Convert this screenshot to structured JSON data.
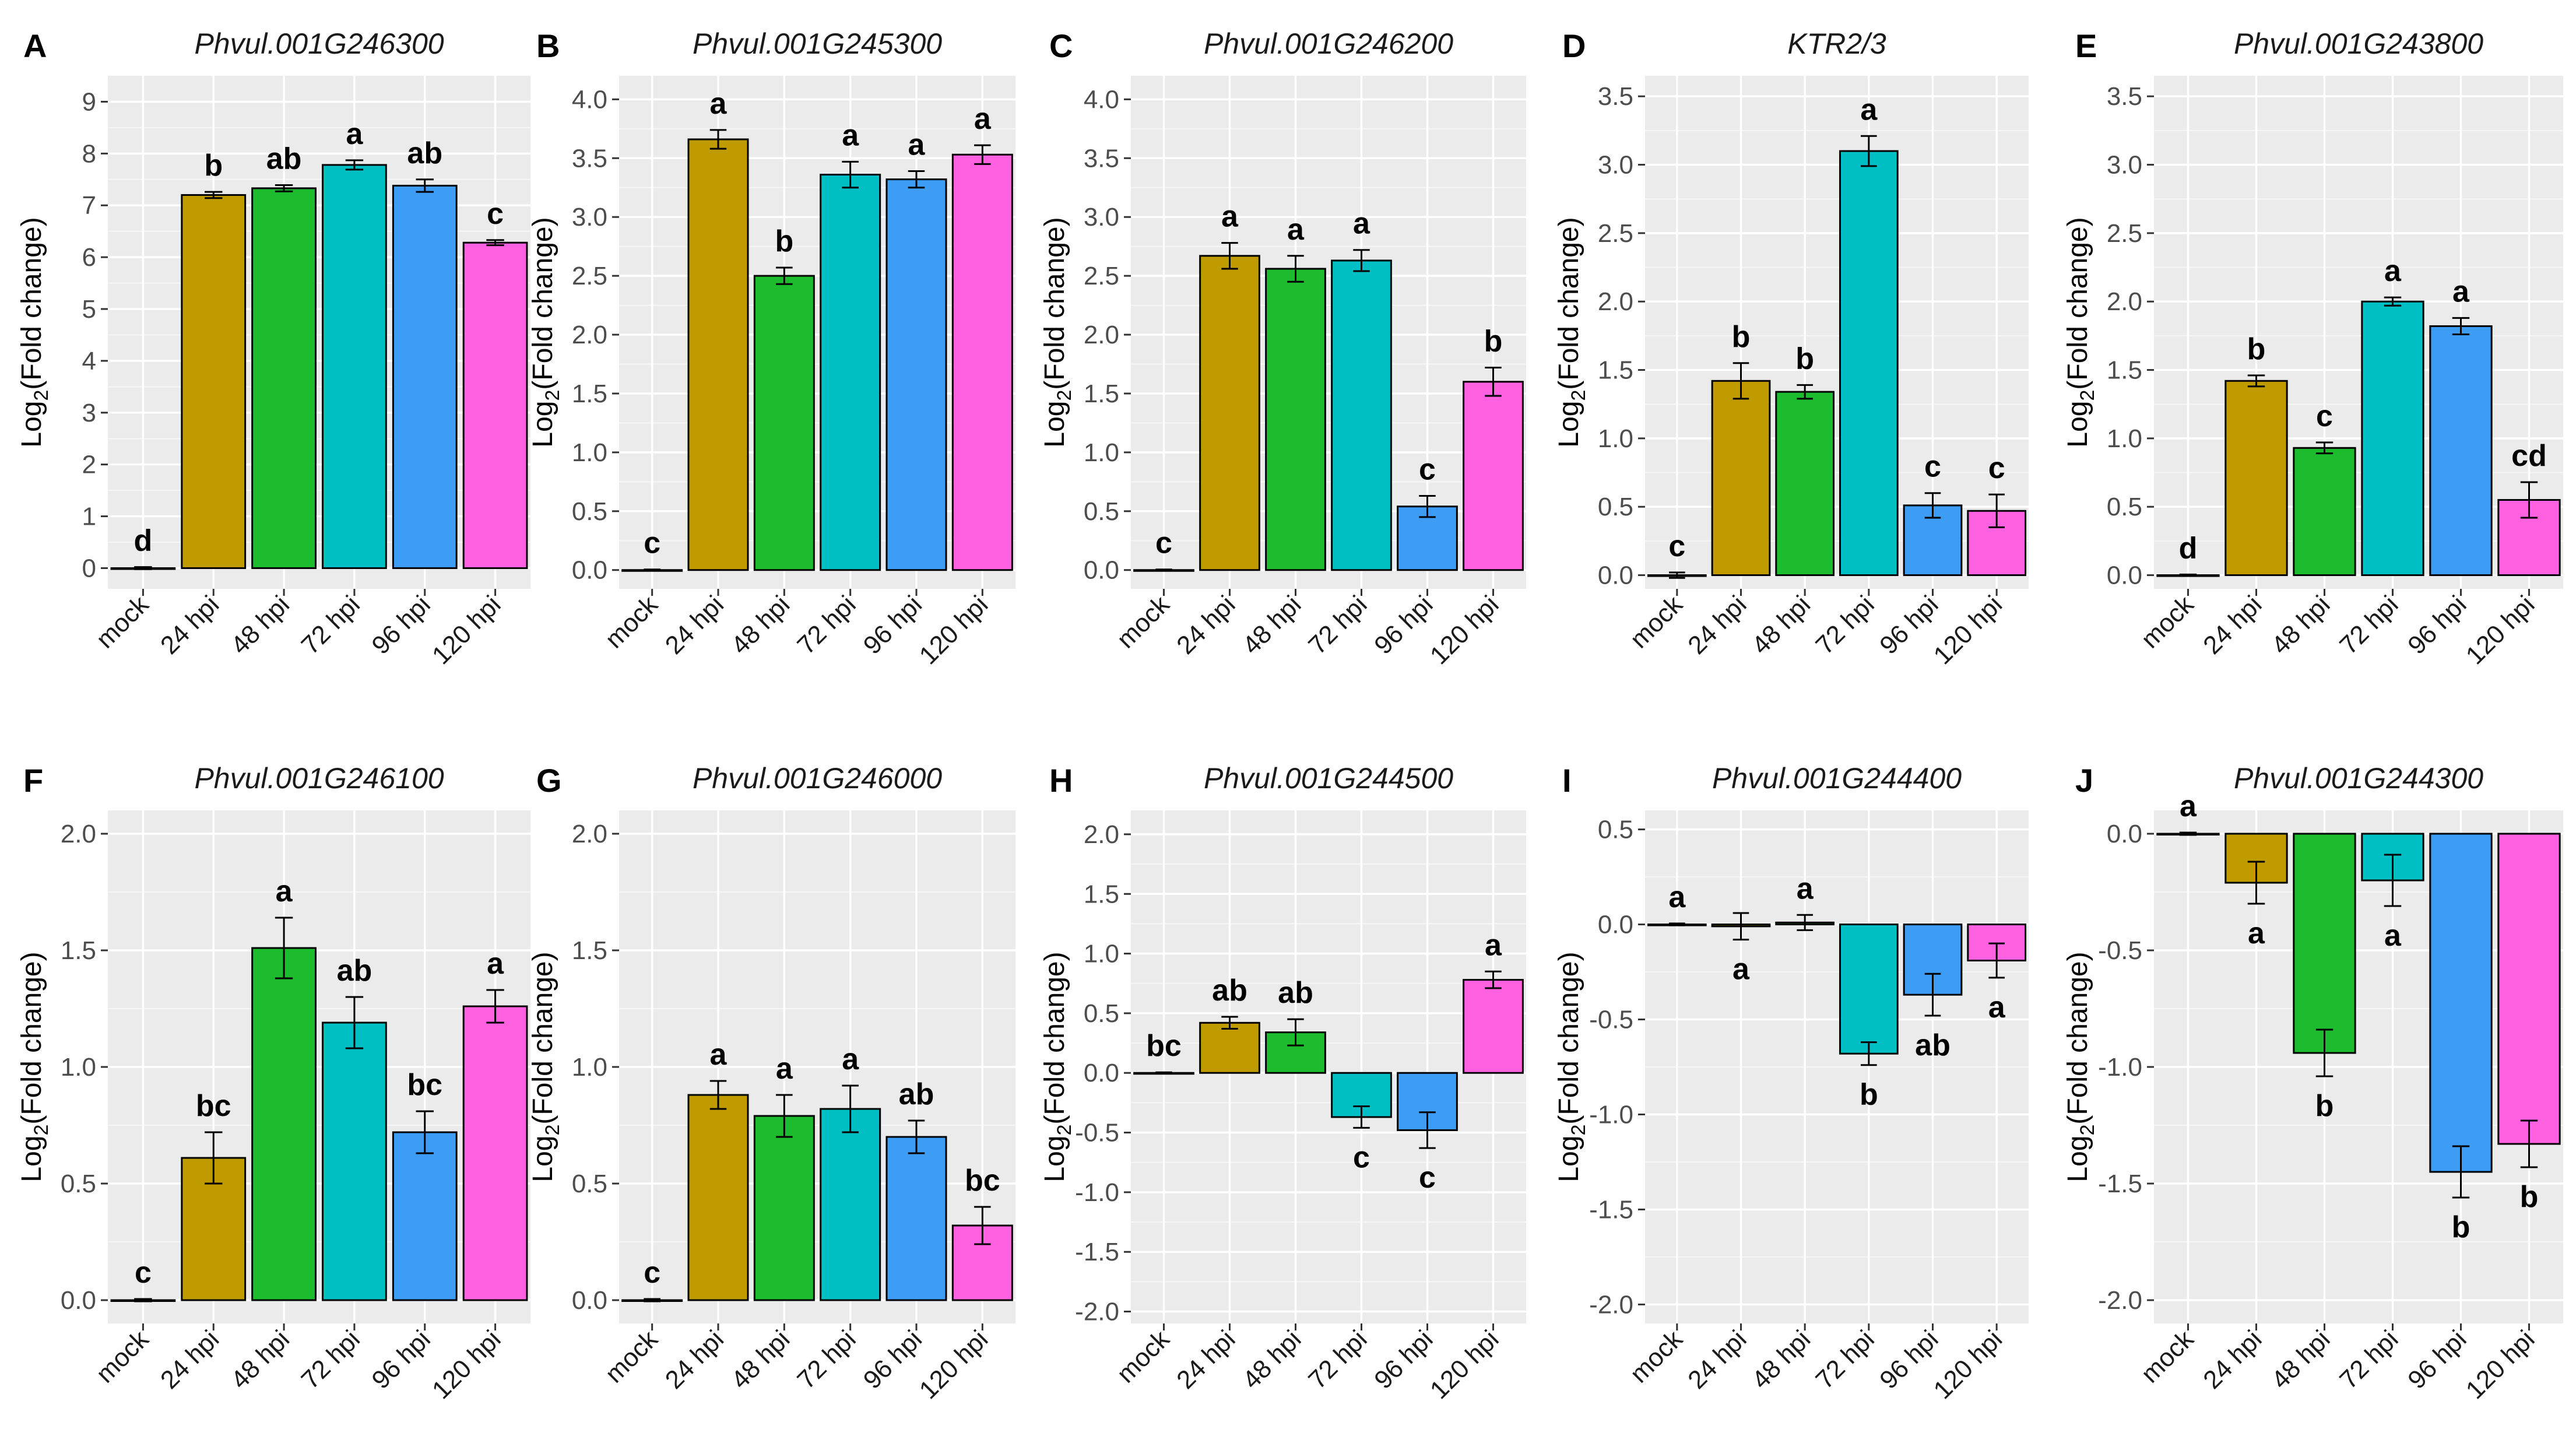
{
  "colors": {
    "panel_background": "#EBEBEB",
    "grid_major": "#FFFFFF",
    "bar_outline": "#000000",
    "series": [
      "#000000",
      "#BF9B00",
      "#1DBC2E",
      "#00BFC4",
      "#3D9DF5",
      "#FF61E1"
    ]
  },
  "chart_data": [
    {
      "type": "bar",
      "panel": "A",
      "title": "Phvul.001G246300",
      "ylabel_main": "Log",
      "ylabel_sub": "2",
      "ylabel_rest": "(Fold change)",
      "categories": [
        "mock",
        "24 hpi",
        "48 hpi",
        "72 hpi",
        "96 hpi",
        "120 hpi"
      ],
      "values": [
        0,
        7.2,
        7.33,
        7.78,
        7.38,
        6.28
      ],
      "errors": [
        0.02,
        0.06,
        0.06,
        0.09,
        0.12,
        0.05
      ],
      "letters": [
        "d",
        "b",
        "ab",
        "a",
        "ab",
        "c"
      ],
      "ylim": [
        -0.4,
        9.5
      ],
      "ticks": [
        0,
        1,
        2,
        3,
        4,
        5,
        6,
        7,
        8,
        9
      ],
      "tick_labels": [
        "0",
        "1",
        "2",
        "3",
        "4",
        "5",
        "6",
        "7",
        "8",
        "9"
      ]
    },
    {
      "type": "bar",
      "panel": "B",
      "title": "Phvul.001G245300",
      "ylabel_main": "Log",
      "ylabel_sub": "2",
      "ylabel_rest": "(Fold change)",
      "categories": [
        "mock",
        "24 hpi",
        "48 hpi",
        "72 hpi",
        "96 hpi",
        "120 hpi"
      ],
      "values": [
        0,
        3.66,
        2.5,
        3.36,
        3.32,
        3.53
      ],
      "errors": [
        0.005,
        0.08,
        0.07,
        0.11,
        0.07,
        0.08
      ],
      "letters": [
        "c",
        "a",
        "b",
        "a",
        "a",
        "a"
      ],
      "ylim": [
        -0.16,
        4.2
      ],
      "ticks": [
        0,
        0.5,
        1,
        1.5,
        2,
        2.5,
        3,
        3.5,
        4
      ],
      "tick_labels": [
        "0.0",
        "0.5",
        "1.0",
        "1.5",
        "2.0",
        "2.5",
        "3.0",
        "3.5",
        "4.0"
      ]
    },
    {
      "type": "bar",
      "panel": "C",
      "title": "Phvul.001G246200",
      "ylabel_main": "Log",
      "ylabel_sub": "2",
      "ylabel_rest": "(Fold change)",
      "categories": [
        "mock",
        "24 hpi",
        "48 hpi",
        "72 hpi",
        "96 hpi",
        "120 hpi"
      ],
      "values": [
        0,
        2.67,
        2.56,
        2.63,
        0.54,
        1.6
      ],
      "errors": [
        0.005,
        0.11,
        0.11,
        0.09,
        0.09,
        0.12
      ],
      "letters": [
        "c",
        "a",
        "a",
        "a",
        "c",
        "b"
      ],
      "ylim": [
        -0.16,
        4.2
      ],
      "ticks": [
        0,
        0.5,
        1,
        1.5,
        2,
        2.5,
        3,
        3.5,
        4
      ],
      "tick_labels": [
        "0.0",
        "0.5",
        "1.0",
        "1.5",
        "2.0",
        "2.5",
        "3.0",
        "3.5",
        "4.0"
      ]
    },
    {
      "type": "bar",
      "panel": "D",
      "title": "KTR2/3",
      "ylabel_main": "Log",
      "ylabel_sub": "2",
      "ylabel_rest": "(Fold change)",
      "categories": [
        "mock",
        "24 hpi",
        "48 hpi",
        "72 hpi",
        "96 hpi",
        "120 hpi"
      ],
      "values": [
        0,
        1.42,
        1.34,
        3.1,
        0.51,
        0.47
      ],
      "errors": [
        0.02,
        0.13,
        0.05,
        0.11,
        0.09,
        0.12
      ],
      "letters": [
        "c",
        "b",
        "b",
        "a",
        "c",
        "c"
      ],
      "ylim": [
        -0.1,
        3.65
      ],
      "ticks": [
        0,
        0.5,
        1,
        1.5,
        2,
        2.5,
        3,
        3.5
      ],
      "tick_labels": [
        "0.0",
        "0.5",
        "1.0",
        "1.5",
        "2.0",
        "2.5",
        "3.0",
        "3.5"
      ]
    },
    {
      "type": "bar",
      "panel": "E",
      "title": "Phvul.001G243800",
      "ylabel_main": "Log",
      "ylabel_sub": "2",
      "ylabel_rest": "(Fold change)",
      "categories": [
        "mock",
        "24 hpi",
        "48 hpi",
        "72 hpi",
        "96 hpi",
        "120 hpi"
      ],
      "values": [
        0,
        1.42,
        0.93,
        2.0,
        1.82,
        0.55
      ],
      "errors": [
        0.005,
        0.04,
        0.04,
        0.03,
        0.06,
        0.13
      ],
      "letters": [
        "d",
        "b",
        "c",
        "a",
        "a",
        "cd"
      ],
      "ylim": [
        -0.1,
        3.65
      ],
      "ticks": [
        0,
        0.5,
        1,
        1.5,
        2,
        2.5,
        3,
        3.5
      ],
      "tick_labels": [
        "0.0",
        "0.5",
        "1.0",
        "1.5",
        "2.0",
        "2.5",
        "3.0",
        "3.5"
      ]
    },
    {
      "type": "bar",
      "panel": "F",
      "title": "Phvul.001G246100",
      "ylabel_main": "Log",
      "ylabel_sub": "2",
      "ylabel_rest": "(Fold change)",
      "categories": [
        "mock",
        "24 hpi",
        "48 hpi",
        "72 hpi",
        "96 hpi",
        "120 hpi"
      ],
      "values": [
        0,
        0.61,
        1.51,
        1.19,
        0.72,
        1.26
      ],
      "errors": [
        0.005,
        0.11,
        0.13,
        0.11,
        0.09,
        0.07
      ],
      "letters": [
        "c",
        "bc",
        "a",
        "ab",
        "bc",
        "a"
      ],
      "ylim": [
        -0.1,
        2.1
      ],
      "ticks": [
        0,
        0.5,
        1,
        1.5,
        2
      ],
      "tick_labels": [
        "0.0",
        "0.5",
        "1.0",
        "1.5",
        "2.0"
      ]
    },
    {
      "type": "bar",
      "panel": "G",
      "title": "Phvul.001G246000",
      "ylabel_main": "Log",
      "ylabel_sub": "2",
      "ylabel_rest": "(Fold change)",
      "categories": [
        "mock",
        "24 hpi",
        "48 hpi",
        "72 hpi",
        "96 hpi",
        "120 hpi"
      ],
      "values": [
        0,
        0.88,
        0.79,
        0.82,
        0.7,
        0.32
      ],
      "errors": [
        0.005,
        0.06,
        0.09,
        0.1,
        0.07,
        0.08
      ],
      "letters": [
        "c",
        "a",
        "a",
        "a",
        "ab",
        "bc"
      ],
      "ylim": [
        -0.1,
        2.1
      ],
      "ticks": [
        0,
        0.5,
        1,
        1.5,
        2
      ],
      "tick_labels": [
        "0.0",
        "0.5",
        "1.0",
        "1.5",
        "2.0"
      ]
    },
    {
      "type": "bar",
      "panel": "H",
      "title": "Phvul.001G244500",
      "ylabel_main": "Log",
      "ylabel_sub": "2",
      "ylabel_rest": "(Fold change)",
      "categories": [
        "mock",
        "24 hpi",
        "48 hpi",
        "72 hpi",
        "96 hpi",
        "120 hpi"
      ],
      "values": [
        0,
        0.42,
        0.34,
        -0.37,
        -0.48,
        0.78
      ],
      "errors": [
        0.005,
        0.05,
        0.11,
        0.09,
        0.15,
        0.07
      ],
      "letters": [
        "bc",
        "ab",
        "ab",
        "c",
        "c",
        "a"
      ],
      "ylim": [
        -2.1,
        2.2
      ],
      "ticks": [
        -2,
        -1.5,
        -1,
        -0.5,
        0,
        0.5,
        1,
        1.5,
        2
      ],
      "tick_labels": [
        "-2.0",
        "-1.5",
        "-1.0",
        "-0.5",
        "0.0",
        "0.5",
        "1.0",
        "1.5",
        "2.0"
      ]
    },
    {
      "type": "bar",
      "panel": "I",
      "title": "Phvul.001G244400",
      "ylabel_main": "Log",
      "ylabel_sub": "2",
      "ylabel_rest": "(Fold change)",
      "categories": [
        "mock",
        "24 hpi",
        "48 hpi",
        "72 hpi",
        "96 hpi",
        "120 hpi"
      ],
      "values": [
        0,
        -0.01,
        0.01,
        -0.68,
        -0.37,
        -0.19
      ],
      "errors": [
        0.005,
        0.07,
        0.04,
        0.06,
        0.11,
        0.09
      ],
      "letters": [
        "a",
        "a",
        "a",
        "b",
        "ab",
        "a"
      ],
      "ylim": [
        -2.1,
        0.6
      ],
      "ticks": [
        -2,
        -1.5,
        -1,
        -0.5,
        0,
        0.5
      ],
      "tick_labels": [
        "-2.0",
        "-1.5",
        "-1.0",
        "-0.5",
        "0.0",
        "0.5"
      ]
    },
    {
      "type": "bar",
      "panel": "J",
      "title": "Phvul.001G244300",
      "ylabel_main": "Log",
      "ylabel_sub": "2",
      "ylabel_rest": "(Fold change)",
      "categories": [
        "mock",
        "24 hpi",
        "48 hpi",
        "72 hpi",
        "96 hpi",
        "120 hpi"
      ],
      "values": [
        0,
        -0.21,
        -0.94,
        -0.2,
        -1.45,
        -1.33
      ],
      "errors": [
        0.005,
        0.09,
        0.1,
        0.11,
        0.11,
        0.1
      ],
      "letters": [
        "a",
        "a",
        "b",
        "a",
        "b",
        "b"
      ],
      "ylim": [
        -2.1,
        0.1
      ],
      "ticks": [
        -2,
        -1.5,
        -1,
        -0.5,
        0
      ],
      "tick_labels": [
        "-2.0",
        "-1.5",
        "-1.0",
        "-0.5",
        "0.0"
      ]
    }
  ]
}
